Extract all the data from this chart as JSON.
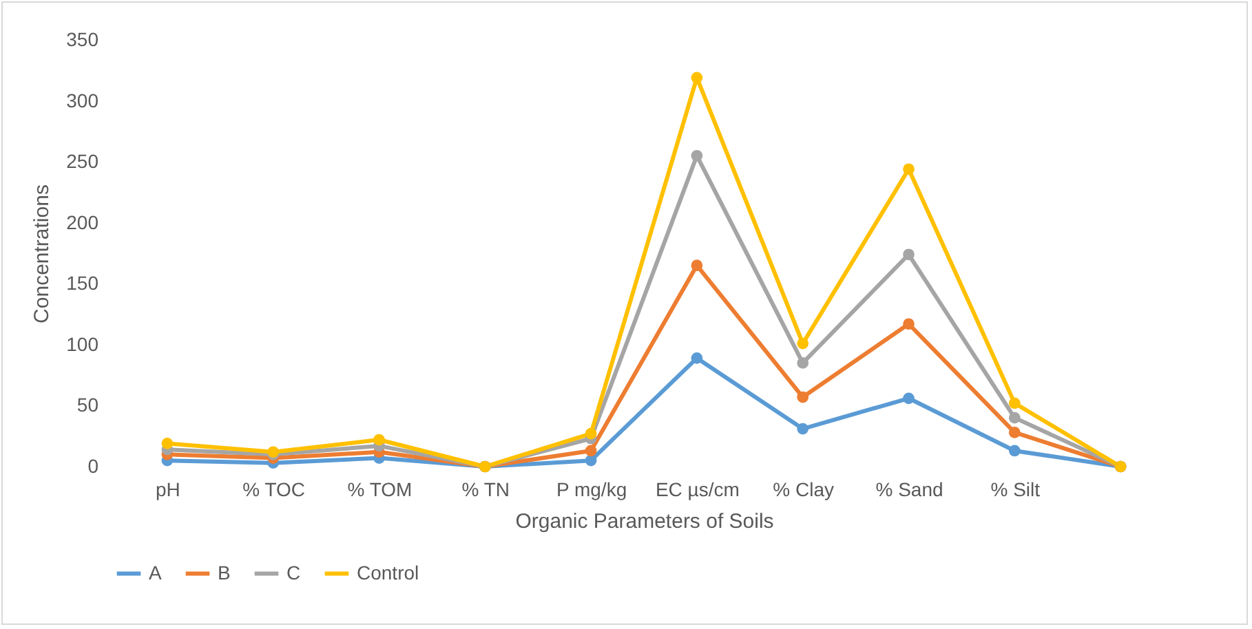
{
  "chart_data": {
    "type": "line",
    "xlabel": "Organic Parameters of Soils",
    "ylabel": "Concentrations",
    "categories": [
      "pH",
      "% TOC",
      "% TOM",
      "% TN",
      "P mg/kg",
      "EC µs/cm",
      "% Clay",
      "% Sand",
      "% Silt",
      null
    ],
    "series": [
      {
        "name": "A",
        "color": "#5b9bd5",
        "values": [
          5,
          3,
          7,
          0,
          5,
          89,
          31,
          56,
          13,
          0
        ]
      },
      {
        "name": "B",
        "color": "#ed7d31",
        "values": [
          10,
          7,
          12,
          0,
          13,
          165,
          57,
          117,
          28,
          0
        ]
      },
      {
        "name": "C",
        "color": "#a5a5a5",
        "values": [
          14,
          10,
          17,
          0,
          23,
          255,
          85,
          174,
          40,
          0
        ]
      },
      {
        "name": "Control",
        "color": "#ffc000",
        "values": [
          19,
          12,
          22,
          0,
          27,
          319,
          101,
          244,
          52,
          0
        ]
      }
    ],
    "ylim": [
      0,
      350
    ],
    "yticks": [
      0,
      50,
      100,
      150,
      200,
      250,
      300,
      350
    ],
    "grid": false,
    "legend": "bottom",
    "marker": "circle",
    "line_style": "solid"
  }
}
